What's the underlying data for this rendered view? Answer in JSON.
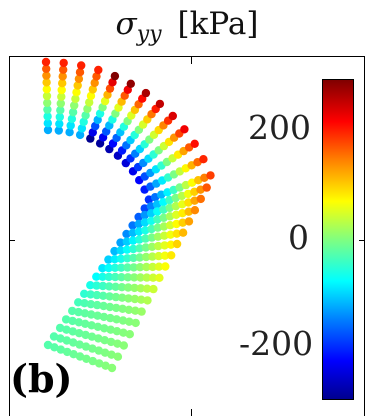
{
  "chart_data": {
    "type": "scatter",
    "title": {
      "symbol": "σ",
      "subscript": "yy",
      "unit": "[kPa]"
    },
    "panel_label": "(b)",
    "colorbar": {
      "ticks": [
        "200",
        "0",
        "-200"
      ],
      "tick_values": [
        200,
        0,
        -200
      ],
      "clim": [
        -290,
        290
      ],
      "colormap": "jet"
    },
    "series": [
      {
        "value_field": "stress"
      }
    ],
    "colors": {
      "jet": [
        "#00008f",
        "#0000ff",
        "#0080ff",
        "#00ffff",
        "#80ff80",
        "#ffff00",
        "#ff8000",
        "#ff0000",
        "#800000"
      ]
    }
  }
}
